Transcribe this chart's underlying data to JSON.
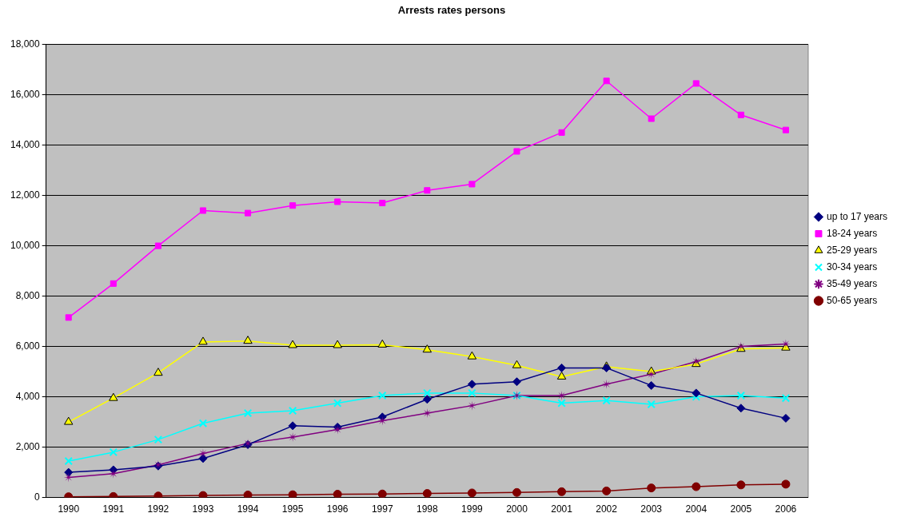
{
  "chart_data": {
    "type": "line",
    "title": "Arrests rates persons",
    "categories": [
      "1990",
      "1991",
      "1992",
      "1993",
      "1994",
      "1995",
      "1996",
      "1997",
      "1998",
      "1999",
      "2000",
      "2001",
      "2002",
      "2003",
      "2004",
      "2005",
      "2006"
    ],
    "series": [
      {
        "name": "up to 17 years",
        "color": "#000080",
        "marker": "diamond",
        "values": [
          1000,
          1100,
          1250,
          1550,
          2100,
          2850,
          2800,
          3200,
          3900,
          4500,
          4600,
          5150,
          5150,
          4450,
          4150,
          3550,
          3150
        ]
      },
      {
        "name": "18-24 years",
        "color": "#ff00ff",
        "marker": "square",
        "values": [
          7150,
          8500,
          10000,
          11400,
          11300,
          11600,
          11750,
          11700,
          12200,
          12450,
          13750,
          14500,
          16550,
          15050,
          16450,
          15200,
          14600
        ]
      },
      {
        "name": "25-29 years",
        "color": "#ffff00",
        "marker": "triangle",
        "values": [
          3000,
          3950,
          4950,
          6180,
          6220,
          6050,
          6050,
          6070,
          5870,
          5600,
          5250,
          4800,
          5200,
          5000,
          5300,
          5900,
          5950
        ]
      },
      {
        "name": "30-34 years",
        "color": "#00ffff",
        "marker": "cross",
        "values": [
          1450,
          1800,
          2300,
          2950,
          3350,
          3450,
          3750,
          4050,
          4150,
          4150,
          4050,
          3750,
          3850,
          3700,
          4000,
          4050,
          3950
        ]
      },
      {
        "name": "35-49 years",
        "color": "#800080",
        "marker": "star",
        "values": [
          800,
          950,
          1300,
          1750,
          2150,
          2400,
          2700,
          3050,
          3350,
          3650,
          4050,
          4050,
          4500,
          4900,
          5400,
          6000,
          6100
        ]
      },
      {
        "name": "50-65 years",
        "color": "#800000",
        "marker": "circle",
        "values": [
          30,
          40,
          60,
          80,
          100,
          110,
          130,
          140,
          160,
          180,
          200,
          230,
          260,
          380,
          430,
          500,
          530
        ]
      }
    ],
    "ylim": [
      0,
      18000
    ],
    "yticks": [
      {
        "value": 0,
        "label": "0"
      },
      {
        "value": 2000,
        "label": "2,000"
      },
      {
        "value": 4000,
        "label": "4,000"
      },
      {
        "value": 6000,
        "label": "6,000"
      },
      {
        "value": 8000,
        "label": "8,000"
      },
      {
        "value": 10000,
        "label": "10,000"
      },
      {
        "value": 12000,
        "label": "12,000"
      },
      {
        "value": 14000,
        "label": "14,000"
      },
      {
        "value": 16000,
        "label": "16,000"
      },
      {
        "value": 18000,
        "label": "18,000"
      }
    ],
    "grid": "y",
    "legend": "right",
    "line_style": "solid"
  }
}
